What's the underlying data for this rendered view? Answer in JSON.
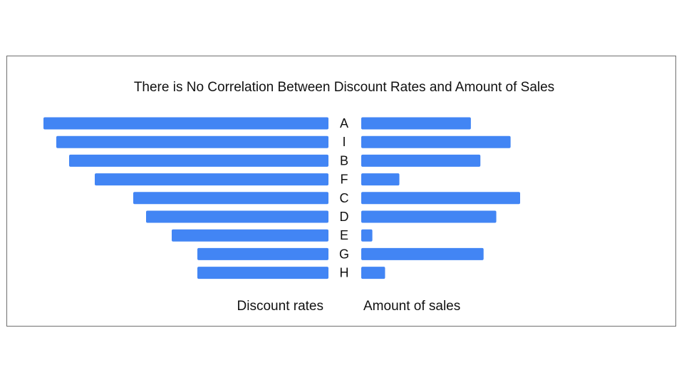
{
  "chart_data": {
    "type": "bar",
    "title": "There is No Correlation Between Discount Rates and Amount of Sales",
    "categories": [
      "A",
      "I",
      "B",
      "F",
      "C",
      "D",
      "E",
      "G",
      "H"
    ],
    "series": [
      {
        "name": "Discount rates",
        "values": [
          100,
          95.5,
          91,
          82,
          68.5,
          64,
          55,
          46,
          46
        ]
      },
      {
        "name": "Amount of sales",
        "values": [
          69,
          94,
          75,
          24,
          100,
          85,
          7,
          77,
          15
        ]
      }
    ],
    "xlabel": "",
    "ylabel": "",
    "grid": false,
    "legend": "none",
    "colors": {
      "bar": "#4285f4",
      "text": "#111111",
      "frame": "#6f6f6f"
    }
  }
}
